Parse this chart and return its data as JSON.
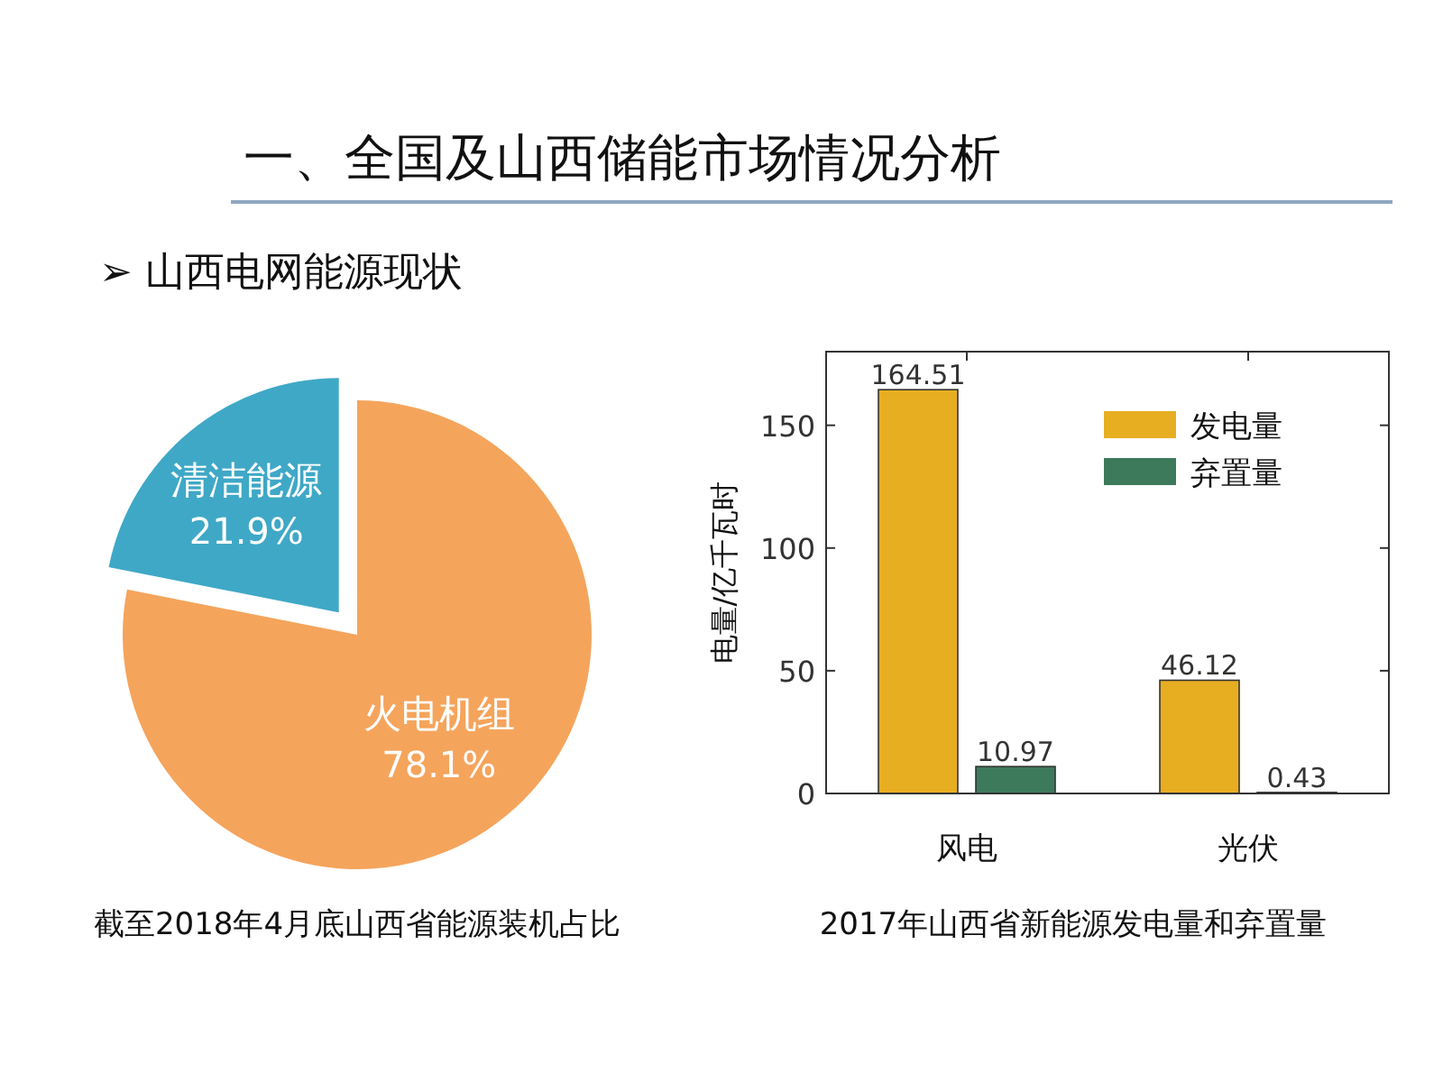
{
  "chart_data": [
    {
      "type": "pie",
      "title": "一、全国及山西储能市场情况分析",
      "subtitle": "➢ 山西电网能源现状",
      "categories": [
        "火电机组",
        "清洁能源"
      ],
      "values": [
        78.1,
        21.9
      ],
      "colors": [
        "#f5a45c",
        "#3fa8c6"
      ],
      "value_labels": [
        "78.1%",
        "21.9%"
      ],
      "annotations": [
        "截至2018年4月底山西省能源装机占比"
      ]
    },
    {
      "type": "bar",
      "categories": [
        "风电",
        "光伏"
      ],
      "ylabel": "电量/亿千瓦时",
      "series": [
        {
          "name": "发电量",
          "color": "#e8ae22",
          "values": [
            164.51,
            46.12
          ]
        },
        {
          "name": "弃置量",
          "color": "#3d7a5c",
          "values": [
            10.97,
            0.43
          ]
        }
      ],
      "ylim": [
        0,
        180
      ],
      "yticks": [
        0,
        50,
        100,
        150
      ],
      "data_labels": true,
      "legend": "top right",
      "annotations": [
        "2017年山西省新能源发电量和弃置量"
      ]
    }
  ]
}
